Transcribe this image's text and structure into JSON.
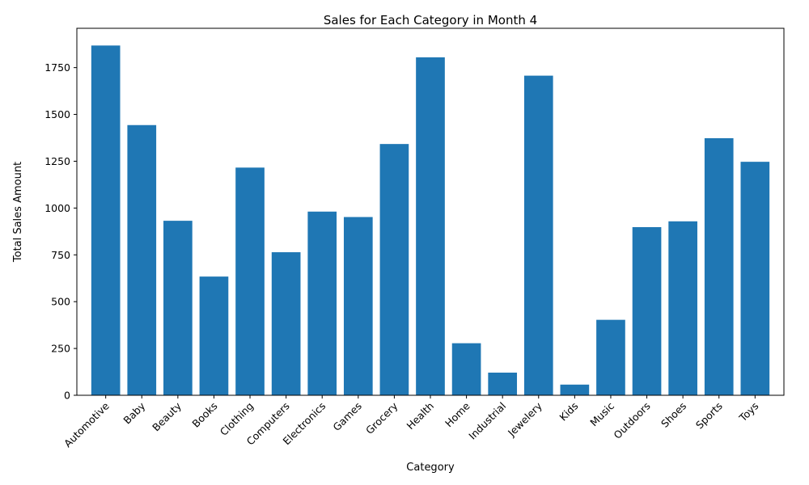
{
  "chart_data": {
    "type": "bar",
    "title": "Sales for Each Category in Month 4",
    "xlabel": "Category",
    "ylabel": "Total Sales Amount",
    "categories": [
      "Automotive",
      "Baby",
      "Beauty",
      "Books",
      "Clothing",
      "Computers",
      "Electronics",
      "Games",
      "Grocery",
      "Health",
      "Home",
      "Industrial",
      "Jewelery",
      "Kids",
      "Music",
      "Outdoors",
      "Shoes",
      "Sports",
      "Toys"
    ],
    "values": [
      1868,
      1443,
      932,
      634,
      1216,
      764,
      981,
      952,
      1342,
      1805,
      278,
      121,
      1707,
      57,
      403,
      898,
      929,
      1373,
      1247
    ],
    "ylim": [
      0,
      1960
    ],
    "yticks": [
      0,
      250,
      500,
      750,
      1000,
      1250,
      1500,
      1750
    ],
    "grid": false,
    "legend": "none",
    "bar_color": "#1f77b4",
    "x_tick_rotation_deg": 45
  }
}
